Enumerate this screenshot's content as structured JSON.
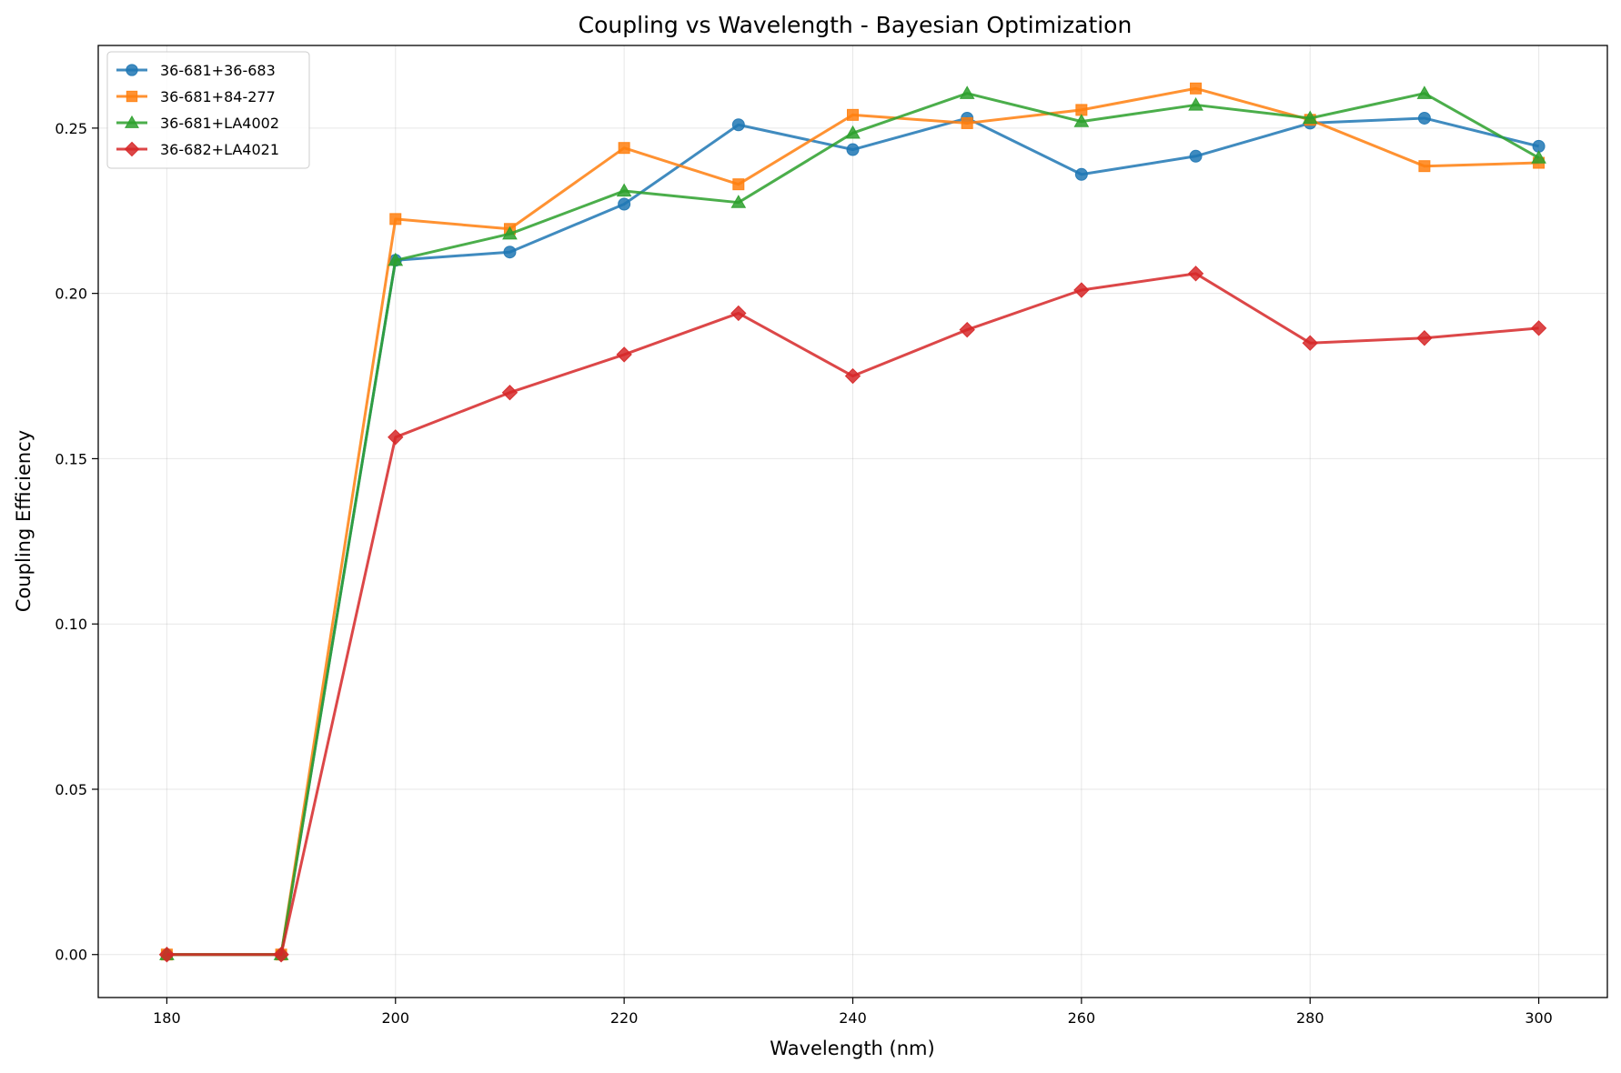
{
  "chart_data": {
    "type": "line",
    "title": "Coupling vs Wavelength - Bayesian Optimization",
    "xlabel": "Wavelength (nm)",
    "ylabel": "Coupling Efficiency",
    "xlim": [
      174,
      306
    ],
    "ylim": [
      -0.013,
      0.275
    ],
    "xticks": [
      180,
      200,
      220,
      240,
      260,
      280,
      300
    ],
    "xtick_labels": [
      "180",
      "200",
      "220",
      "240",
      "260",
      "280",
      "300"
    ],
    "yticks": [
      0.0,
      0.05,
      0.1,
      0.15,
      0.2,
      0.25
    ],
    "ytick_labels": [
      "0.00",
      "0.05",
      "0.10",
      "0.15",
      "0.20",
      "0.25"
    ],
    "grid": true,
    "legend_position": "top-left",
    "x": [
      180,
      190,
      200,
      210,
      220,
      230,
      240,
      250,
      260,
      270,
      280,
      290,
      300
    ],
    "series": [
      {
        "name": "36-681+36-683",
        "color": "#1f77b4",
        "marker": "circle",
        "values": [
          0.0,
          0.0,
          0.21,
          0.2125,
          0.227,
          0.251,
          0.2435,
          0.253,
          0.236,
          0.2415,
          0.2515,
          0.253,
          0.2445
        ]
      },
      {
        "name": "36-681+84-277",
        "color": "#ff7f0e",
        "marker": "square",
        "values": [
          0.0,
          0.0,
          0.2225,
          0.2195,
          0.244,
          0.233,
          0.254,
          0.2515,
          0.2555,
          0.262,
          0.2525,
          0.2385,
          0.2395
        ]
      },
      {
        "name": "36-681+LA4002",
        "color": "#2ca02c",
        "marker": "triangle",
        "values": [
          0.0,
          0.0,
          0.21,
          0.218,
          0.231,
          0.2275,
          0.2485,
          0.2605,
          0.252,
          0.257,
          0.253,
          0.2605,
          0.241
        ]
      },
      {
        "name": "36-682+LA4021",
        "color": "#d62728",
        "marker": "diamond",
        "values": [
          0.0,
          0.0,
          0.1565,
          0.17,
          0.1815,
          0.194,
          0.175,
          0.189,
          0.201,
          0.206,
          0.185,
          0.1865,
          0.1895
        ]
      }
    ]
  }
}
